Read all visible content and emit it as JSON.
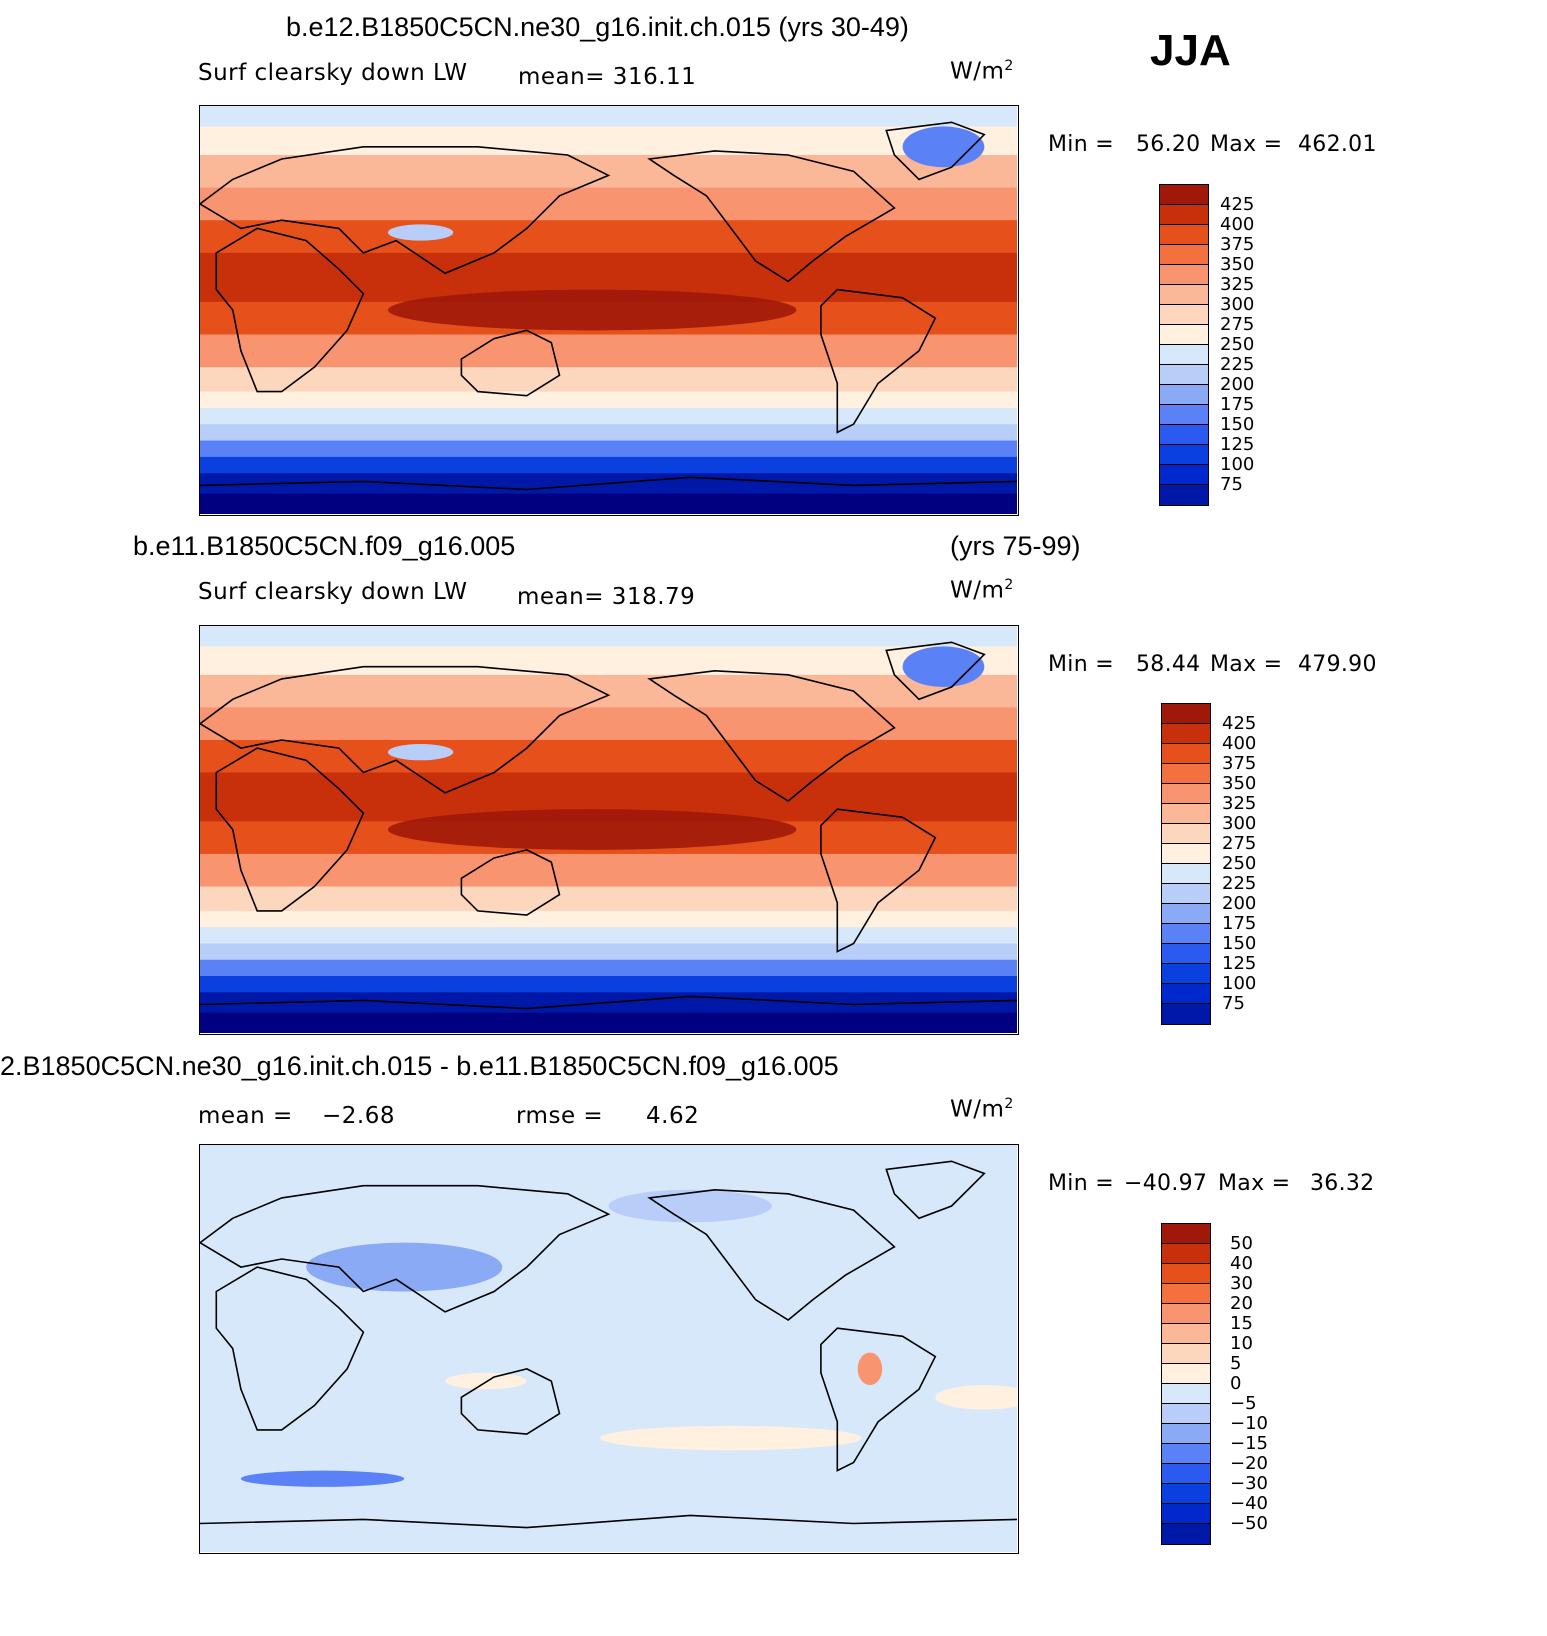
{
  "season": "JJA",
  "colors": {
    "abs_scale": [
      "#000080",
      "#0018a8",
      "#0028cc",
      "#0a40e0",
      "#2a5af0",
      "#5a82f6",
      "#8aaaf6",
      "#b8cef8",
      "#d8e8fb",
      "#fff0e0",
      "#fdd6be",
      "#fbb898",
      "#f99470",
      "#f4713f",
      "#e6501a",
      "#c8300c",
      "#a0180a",
      "#700808"
    ],
    "diff_scale": [
      "#000080",
      "#0018a8",
      "#0028cc",
      "#0a40e0",
      "#2a5af0",
      "#5a82f6",
      "#8aaaf6",
      "#b8cef8",
      "#d8e8fb",
      "#fff0e0",
      "#fdd6be",
      "#fbb898",
      "#f99470",
      "#f4713f",
      "#e6501a",
      "#c8300c",
      "#a0180a",
      "#700808"
    ],
    "land": "#000000"
  },
  "chart_data": [
    {
      "type": "heatmap",
      "title": "b.e12.B1850C5CN.ne30_g16.init.ch.015 (yrs 30-49)",
      "variable": "Surf clearsky down LW",
      "mean_text": "mean= 316.11",
      "units": "W/m",
      "units_exp": "2",
      "min_label": "Min =",
      "min": "56.20",
      "max_label": "Max =",
      "max": "462.01",
      "levels": [
        "425",
        "400",
        "375",
        "350",
        "325",
        "300",
        "275",
        "250",
        "225",
        "200",
        "175",
        "150",
        "125",
        "100",
        "75"
      ]
    },
    {
      "type": "heatmap",
      "title_left": "b.e11.B1850C5CN.f09_g16.005",
      "title_right": "(yrs 75-99)",
      "variable": "Surf clearsky down LW",
      "mean_text": "mean= 318.79",
      "units": "W/m",
      "units_exp": "2",
      "min_label": "Min =",
      "min": "58.44",
      "max_label": "Max =",
      "max": "479.90",
      "levels": [
        "425",
        "400",
        "375",
        "350",
        "325",
        "300",
        "275",
        "250",
        "225",
        "200",
        "175",
        "150",
        "125",
        "100",
        "75"
      ]
    },
    {
      "type": "heatmap",
      "title": "2.B1850C5CN.ne30_g16.init.ch.015 - b.e11.B1850C5CN.f09_g16.005",
      "mean_label": "mean =",
      "mean": "−2.68",
      "rmse_label": "rmse =",
      "rmse": "4.62",
      "units": "W/m",
      "units_exp": "2",
      "min_label": "Min =",
      "min": "−40.97",
      "max_label": "Max =",
      "max": "36.32",
      "levels": [
        "50",
        "40",
        "30",
        "20",
        "15",
        "10",
        "5",
        "0",
        "−5",
        "−10",
        "−15",
        "−20",
        "−30",
        "−40",
        "−50"
      ]
    }
  ]
}
